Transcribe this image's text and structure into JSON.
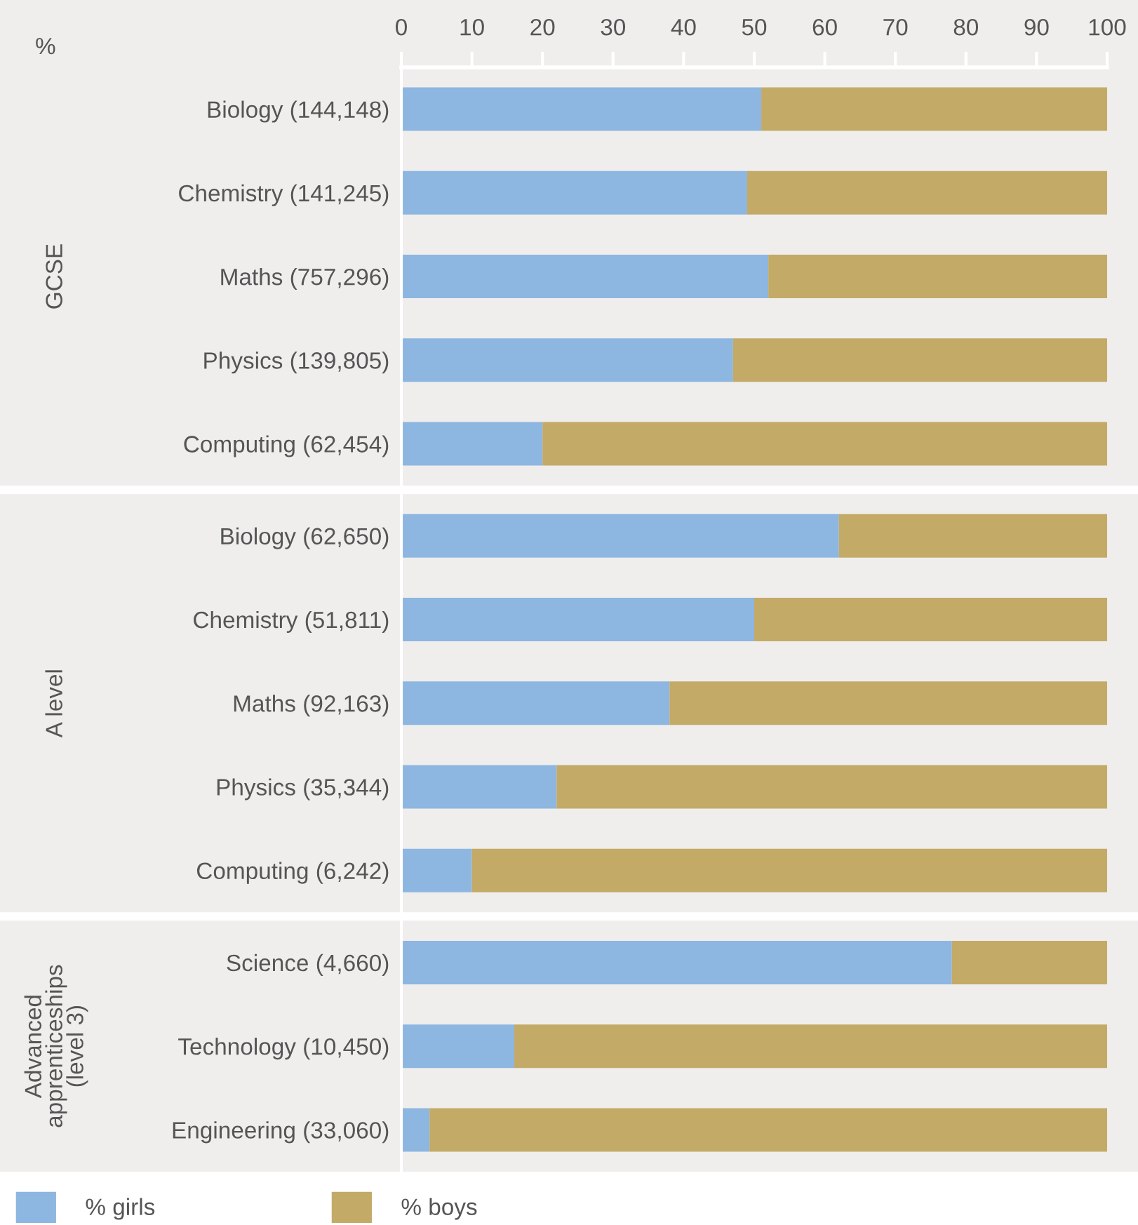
{
  "chart_data": [
    {
      "type": "bar",
      "orientation": "horizontal",
      "stacked": true,
      "xlabel": "%",
      "ylabel": "GCSE",
      "legend": "bottom",
      "categories": [
        "Biology (144,148)",
        "Chemistry (141,245)",
        "Maths (757,296)",
        "Physics (139,805)",
        "Computing (62,454)"
      ],
      "series": [
        {
          "name": "% girls",
          "color": "#8db6e1",
          "values": [
            51,
            49,
            52,
            47,
            20
          ]
        },
        {
          "name": "% boys",
          "color": "#c3aa67",
          "values": [
            49,
            51,
            48,
            53,
            80
          ]
        }
      ],
      "xlim": [
        0,
        100
      ],
      "xticks": [
        0,
        10,
        20,
        30,
        40,
        50,
        60,
        70,
        80,
        90,
        100
      ]
    },
    {
      "type": "bar",
      "orientation": "horizontal",
      "stacked": true,
      "ylabel": "A level",
      "tick_labels": "y",
      "categories": [
        "Biology (62,650)",
        "Chemistry (51,811)",
        "Maths (92,163)",
        "Physics (35,344)",
        "Computing (6,242)"
      ],
      "series": [
        {
          "color": "#8db6e1",
          "values": [
            62,
            50,
            38,
            22,
            10
          ]
        },
        {
          "color": "#c3aa67",
          "values": [
            38,
            50,
            62,
            78,
            90
          ]
        }
      ],
      "xlim": [
        0,
        100
      ],
      "xticks": [
        0,
        10,
        20,
        30,
        40,
        50,
        60,
        70,
        80,
        90,
        100
      ]
    },
    {
      "type": "bar",
      "orientation": "horizontal",
      "stacked": true,
      "ylabel": "Advanced\napprenticeships\n(level 3)",
      "tick_labels": "y",
      "categories": [
        "Science (4,660)",
        "Technology (10,450)",
        "Engineering (33,060)"
      ],
      "series": [
        {
          "color": "#8db6e1",
          "values": [
            78,
            16,
            4
          ]
        },
        {
          "color": "#c3aa67",
          "values": [
            22,
            84,
            96
          ]
        }
      ],
      "xlim": [
        0,
        100
      ],
      "xticks": [
        0,
        10,
        20,
        30,
        40,
        50,
        60,
        70,
        80,
        90,
        100
      ]
    }
  ]
}
